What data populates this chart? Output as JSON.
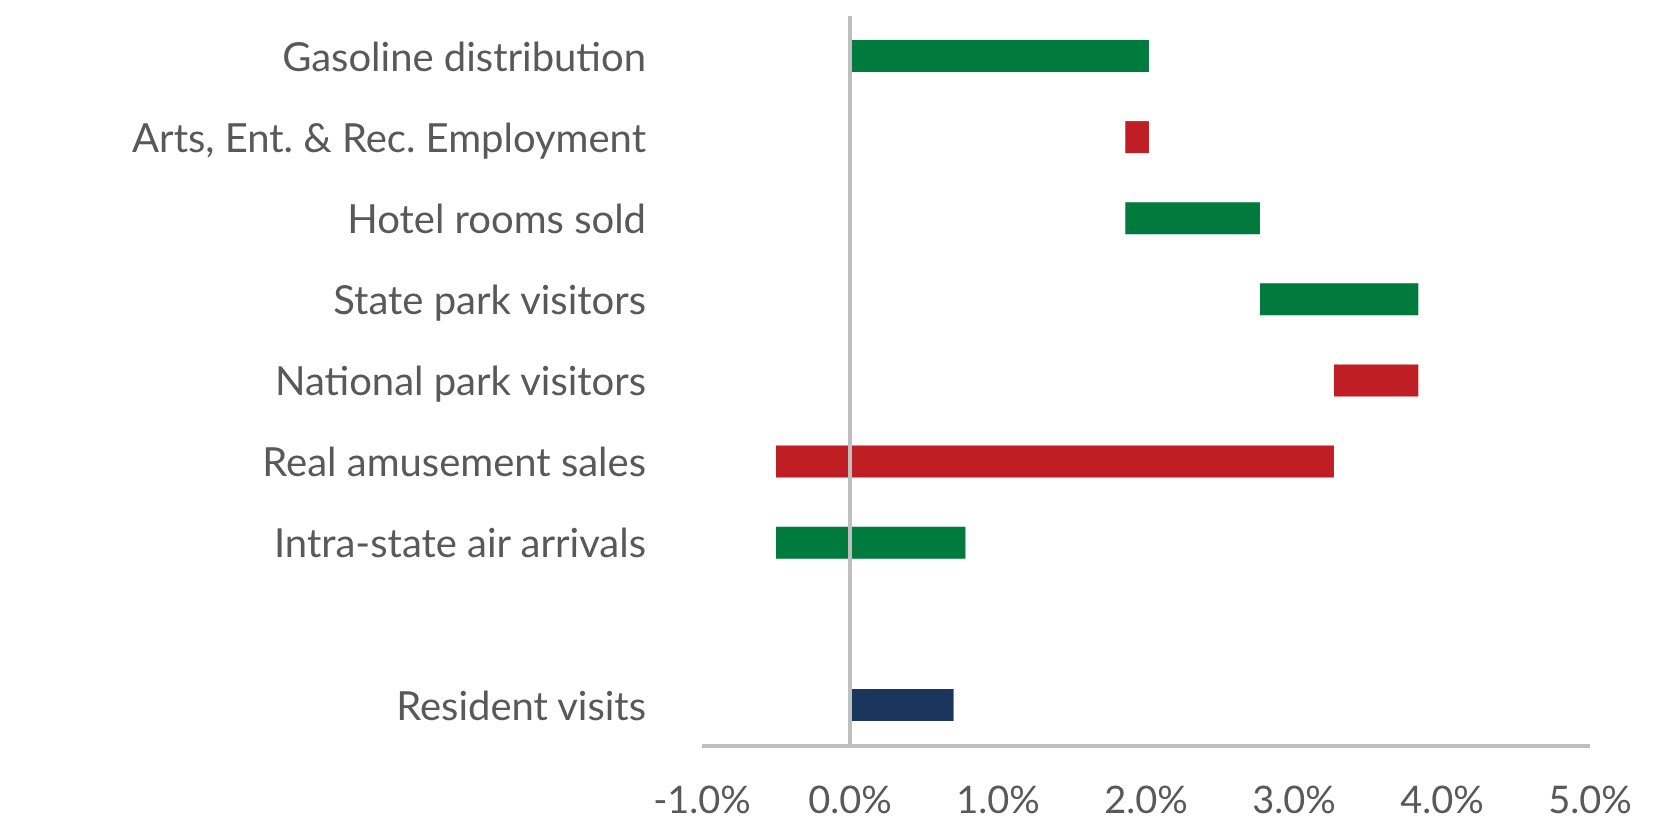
{
  "chart_data": {
    "type": "bar",
    "orientation": "horizontal",
    "categories": [
      "Gasoline distribution",
      "Arts, Ent. & Rec. Employment",
      "Hotel rooms sold",
      "State park visitors",
      "National park visitors",
      "Real amusement sales",
      "Intra-state air arrivals",
      null,
      "Resident visits"
    ],
    "values": [
      2.02,
      -0.16,
      0.91,
      1.07,
      -0.57,
      -3.77,
      1.28,
      null,
      0.7
    ],
    "base": [
      0,
      2.02,
      1.86,
      2.77,
      3.84,
      3.27,
      -0.5,
      null,
      0
    ],
    "colors": [
      "#007a3d",
      "#be1e24",
      "#007a3d",
      "#007a3d",
      "#be1e24",
      "#be1e24",
      "#007a3d",
      null,
      "#1a365d"
    ],
    "xlim": [
      -1,
      5
    ],
    "xticks": [
      {
        "value": -1,
        "label": "-1.0%"
      },
      {
        "value": 0,
        "label": "0.0%"
      },
      {
        "value": 1,
        "label": "1.0%"
      },
      {
        "value": 2,
        "label": "2.0%"
      },
      {
        "value": 3,
        "label": "3.0%"
      },
      {
        "value": 4,
        "label": "4.0%"
      },
      {
        "value": 5,
        "label": "5.0%"
      }
    ],
    "ref_lines": [
      {
        "axis": "x",
        "value": 0,
        "color": "#bfbfbf"
      }
    ]
  }
}
